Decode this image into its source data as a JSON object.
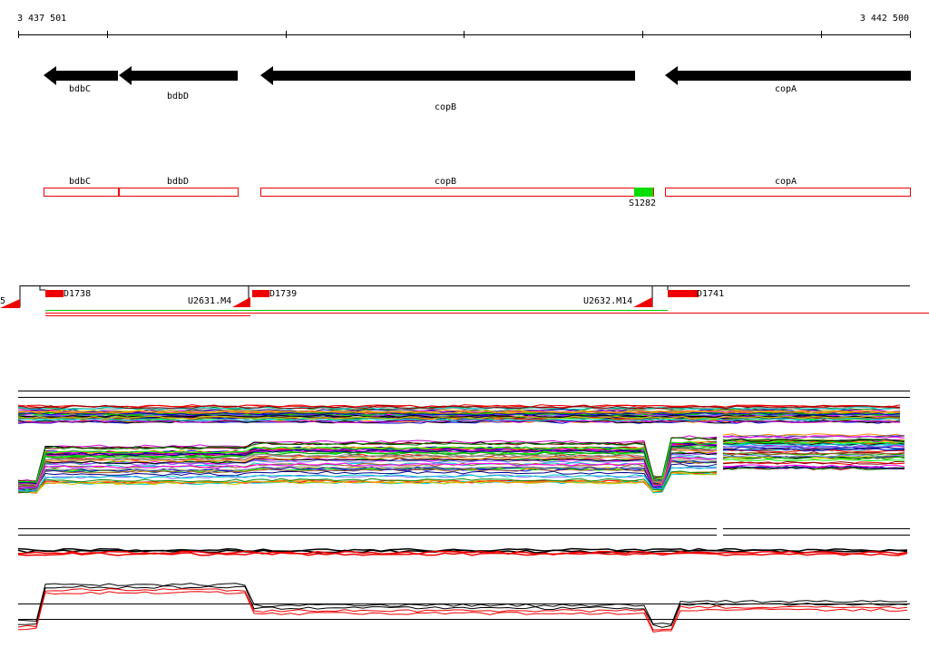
{
  "axis": {
    "start": "3 437 501",
    "end": "3 442 500"
  },
  "genes": [
    {
      "label": "bdbC"
    },
    {
      "label": "bdbD"
    },
    {
      "label": "copB"
    },
    {
      "label": "copA"
    }
  ],
  "annotations": [
    {
      "label": "bdbC"
    },
    {
      "label": "bdbD"
    },
    {
      "label": "copB"
    },
    {
      "label": "copA"
    }
  ],
  "feature": {
    "label": "S1282"
  },
  "probes": {
    "edge": "5",
    "items": [
      "D1738",
      "U2631.M4",
      "D1739",
      "U2632.M14",
      "D1741"
    ]
  }
}
